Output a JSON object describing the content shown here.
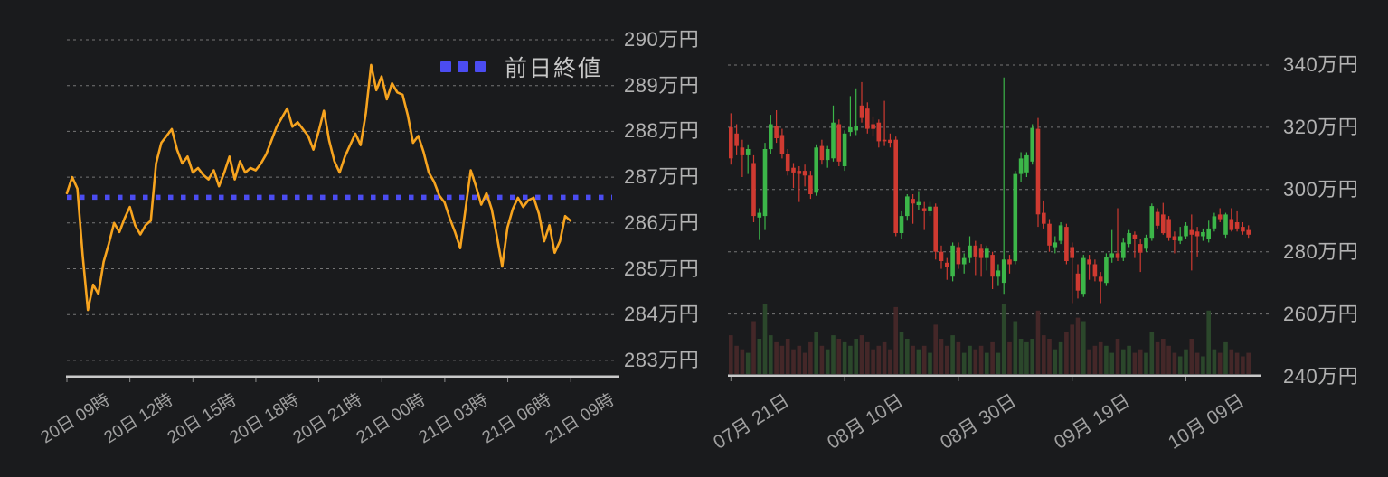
{
  "page": {
    "background": "#1a1b1d",
    "axis_color": "#c9c9c9",
    "grid_color": "#858585",
    "label_color": "#a0a0a0"
  },
  "legend": {
    "label": "前日終値",
    "marker_color": "#4b4cf1"
  },
  "chart_data": [
    {
      "id": "intraday-price",
      "type": "line",
      "title": "",
      "xlabel": "",
      "ylabel": "",
      "unit": "万円",
      "line_color": "#f7a41f",
      "grid": true,
      "legend_position": "top-right",
      "ylim": [
        282.6,
        290.5
      ],
      "y_ticks": [
        290,
        289,
        288,
        287,
        286,
        285,
        284,
        283
      ],
      "y_tick_labels": [
        "290万円",
        "289万円",
        "288万円",
        "287万円",
        "286万円",
        "285万円",
        "284万円",
        "283万円"
      ],
      "x_tick_labels": [
        "20日 09時",
        "20日 12時",
        "20日 15時",
        "20日 18時",
        "20日 21時",
        "21日 00時",
        "21日 03時",
        "21日 06時",
        "21日 09時"
      ],
      "start_hour": 9,
      "interval_minutes": 15,
      "hours_span": 24,
      "reference_line": {
        "label": "前日終値",
        "value": 286.56,
        "color": "#4b4cf1",
        "style": "dotted"
      },
      "values": [
        286.65,
        287.0,
        286.75,
        285.3,
        284.1,
        284.65,
        284.45,
        285.15,
        285.55,
        286.0,
        285.8,
        286.1,
        286.35,
        285.95,
        285.75,
        285.95,
        286.05,
        287.3,
        287.75,
        287.9,
        288.05,
        287.6,
        287.3,
        287.45,
        287.1,
        287.2,
        287.05,
        286.95,
        287.15,
        286.8,
        287.1,
        287.45,
        286.95,
        287.35,
        287.1,
        287.2,
        287.15,
        287.3,
        287.5,
        287.8,
        288.1,
        288.3,
        288.5,
        288.1,
        288.2,
        288.05,
        287.9,
        287.6,
        288.0,
        288.45,
        287.8,
        287.35,
        287.1,
        287.45,
        287.7,
        287.95,
        287.7,
        288.4,
        289.45,
        288.9,
        289.2,
        288.7,
        289.05,
        288.85,
        288.8,
        288.35,
        287.75,
        287.9,
        287.55,
        287.1,
        286.9,
        286.6,
        286.45,
        286.1,
        285.8,
        285.45,
        286.3,
        287.15,
        286.8,
        286.4,
        286.65,
        286.3,
        285.7,
        285.05,
        285.9,
        286.3,
        286.55,
        286.35,
        286.5,
        286.55,
        286.2,
        285.6,
        285.95,
        285.35,
        285.6,
        286.15,
        286.05
      ]
    },
    {
      "id": "daily-candles",
      "type": "candlestick",
      "title": "",
      "xlabel": "",
      "ylabel": "",
      "unit": "万円",
      "up_color": "#3cb649",
      "down_color": "#cf3a31",
      "volume_up_color": "#2c4a2c",
      "volume_down_color": "#472829",
      "grid": true,
      "ylim": [
        240,
        344
      ],
      "y_ticks": [
        340,
        320,
        300,
        280,
        260,
        240
      ],
      "y_tick_labels": [
        "340万円",
        "320万円",
        "300万円",
        "280万円",
        "260万円",
        "240万円"
      ],
      "x_tick_labels": [
        "07月 21日",
        "08月 10日",
        "08月 30日",
        "09月 19日",
        "10月 09日"
      ],
      "x_tick_interval_days": 20,
      "candles_ohlcv": [
        [
          320,
          324.5,
          308,
          310,
          0.55
        ],
        [
          318,
          321,
          311,
          314,
          0.4
        ],
        [
          313.5,
          316,
          304,
          311,
          0.35
        ],
        [
          311,
          314.5,
          305,
          313,
          0.3
        ],
        [
          308.5,
          311,
          289.5,
          291.5,
          0.75
        ],
        [
          291,
          294,
          283.8,
          292.5,
          0.5
        ],
        [
          291.5,
          315,
          287,
          313,
          1.0
        ],
        [
          313,
          324,
          311.5,
          321,
          0.55
        ],
        [
          320.5,
          325.5,
          315,
          316.5,
          0.45
        ],
        [
          317.5,
          319.5,
          310,
          311.5,
          0.4
        ],
        [
          311.5,
          313,
          304.5,
          306,
          0.5
        ],
        [
          307,
          308.5,
          300.5,
          305.5,
          0.35
        ],
        [
          306,
          307.5,
          296,
          305,
          0.4
        ],
        [
          306,
          308,
          301,
          304.5,
          0.3
        ],
        [
          304.5,
          306,
          297,
          298.5,
          0.45
        ],
        [
          299,
          314.5,
          298,
          313.5,
          0.6
        ],
        [
          314,
          316,
          308,
          309.5,
          0.4
        ],
        [
          309.5,
          314,
          307,
          313,
          0.35
        ],
        [
          310,
          327,
          309,
          321.5,
          0.55
        ],
        [
          321,
          322.5,
          307.5,
          309,
          0.5
        ],
        [
          307.5,
          319,
          306,
          318,
          0.45
        ],
        [
          318.5,
          330,
          317,
          320,
          0.4
        ],
        [
          319,
          332.5,
          317.5,
          320.5,
          0.5
        ],
        [
          327,
          334.5,
          321.5,
          323,
          0.55
        ],
        [
          326,
          328,
          318,
          319.5,
          0.45
        ],
        [
          321,
          323.5,
          317,
          319.5,
          0.35
        ],
        [
          321.5,
          322.5,
          313.5,
          315.5,
          0.4
        ],
        [
          316,
          328.5,
          314,
          315.5,
          0.45
        ],
        [
          316,
          318,
          313.5,
          315,
          0.35
        ],
        [
          316,
          317,
          285,
          286,
          0.95
        ],
        [
          286,
          293,
          284,
          291.5,
          0.6
        ],
        [
          291.5,
          298.5,
          290,
          297.8,
          0.5
        ],
        [
          297,
          298.5,
          289,
          295.5,
          0.4
        ],
        [
          295,
          299.5,
          293.5,
          296,
          0.35
        ],
        [
          294,
          296,
          287,
          293,
          0.4
        ],
        [
          293,
          296,
          291.5,
          294.5,
          0.3
        ],
        [
          294.5,
          295.5,
          277.5,
          280,
          0.7
        ],
        [
          280,
          282,
          274.5,
          277,
          0.5
        ],
        [
          276.5,
          278,
          271,
          275,
          0.4
        ],
        [
          272,
          283,
          270.5,
          282,
          0.55
        ],
        [
          281.5,
          283,
          274.5,
          276,
          0.45
        ],
        [
          276,
          279.5,
          273,
          278,
          0.3
        ],
        [
          278,
          285,
          276.5,
          282,
          0.4
        ],
        [
          282,
          283.5,
          272.5,
          278.5,
          0.35
        ],
        [
          281,
          282.5,
          272,
          278,
          0.4
        ],
        [
          278,
          282,
          274,
          281,
          0.3
        ],
        [
          279,
          280,
          268,
          272,
          0.45
        ],
        [
          272,
          276,
          269,
          274,
          0.3
        ],
        [
          270,
          336,
          266.5,
          277.5,
          1.0
        ],
        [
          277.5,
          279,
          273,
          276,
          0.45
        ],
        [
          277,
          306,
          276,
          305,
          0.75
        ],
        [
          305,
          312,
          302.5,
          310,
          0.5
        ],
        [
          305.5,
          312,
          304,
          311,
          0.45
        ],
        [
          309,
          321,
          308,
          319.8,
          0.5
        ],
        [
          319.5,
          323,
          288,
          292,
          0.9
        ],
        [
          292.5,
          296.5,
          287.5,
          289,
          0.55
        ],
        [
          289,
          290.5,
          280,
          282,
          0.5
        ],
        [
          281.5,
          285,
          279.5,
          283,
          0.35
        ],
        [
          283.5,
          289.5,
          282.5,
          288.5,
          0.45
        ],
        [
          288,
          289,
          276,
          277,
          0.6
        ],
        [
          281.5,
          283,
          263.5,
          278,
          0.7
        ],
        [
          273,
          276,
          265,
          267.5,
          0.8
        ],
        [
          266.5,
          279,
          265.5,
          278,
          0.75
        ],
        [
          277.5,
          279,
          271,
          276,
          0.35
        ],
        [
          276,
          277.5,
          270.5,
          272,
          0.4
        ],
        [
          272,
          273.5,
          263.5,
          270.5,
          0.45
        ],
        [
          270,
          279.5,
          269,
          278.3,
          0.4
        ],
        [
          278,
          287,
          276.5,
          279.5,
          0.3
        ],
        [
          279.5,
          294,
          277,
          278,
          0.5
        ],
        [
          278,
          284.5,
          277,
          283,
          0.35
        ],
        [
          282.5,
          287,
          281.5,
          286,
          0.4
        ],
        [
          285.5,
          286.5,
          278,
          284,
          0.3
        ],
        [
          282.5,
          284,
          273.5,
          279.7,
          0.35
        ],
        [
          281,
          285.5,
          280,
          284.6,
          0.3
        ],
        [
          284.5,
          295.5,
          283.5,
          294.7,
          0.6
        ],
        [
          292.8,
          294,
          287.5,
          288.4,
          0.45
        ],
        [
          292,
          295.7,
          285.5,
          286,
          0.5
        ],
        [
          290.5,
          291.5,
          283.5,
          284.6,
          0.4
        ],
        [
          285,
          286.5,
          279.5,
          283.7,
          0.3
        ],
        [
          283.5,
          288,
          282.5,
          285,
          0.25
        ],
        [
          285,
          289.5,
          284,
          288.4,
          0.35
        ],
        [
          287,
          292,
          274,
          285.5,
          0.5
        ],
        [
          286.5,
          288,
          278.5,
          285,
          0.3
        ],
        [
          285,
          287.5,
          283.5,
          286.3,
          0.25
        ],
        [
          284,
          290,
          283,
          287.5,
          0.9
        ],
        [
          287.5,
          292.5,
          286.5,
          291.4,
          0.35
        ],
        [
          292,
          294,
          289.5,
          290.5,
          0.3
        ],
        [
          285.5,
          292.5,
          284.5,
          292,
          0.45
        ],
        [
          290.5,
          294,
          286.5,
          287,
          0.35
        ],
        [
          289.5,
          293,
          286.5,
          287.5,
          0.3
        ],
        [
          288,
          289.5,
          285.5,
          286.5,
          0.25
        ],
        [
          287,
          288.5,
          284.5,
          285.5,
          0.3
        ]
      ]
    }
  ]
}
